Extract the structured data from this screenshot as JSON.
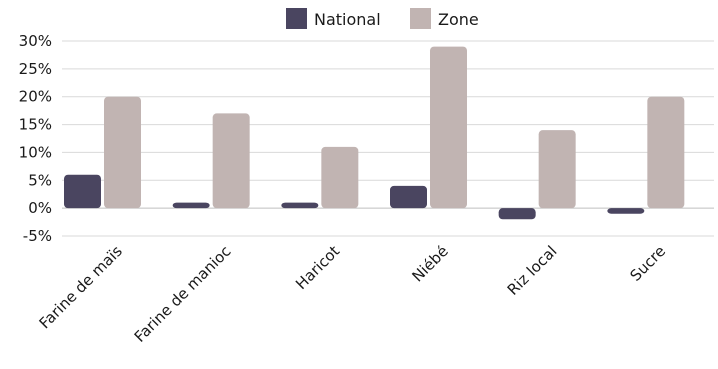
{
  "chart_data": {
    "type": "bar",
    "categories": [
      "Farine de maïs",
      "Farine de manioc",
      "Haricot",
      "Niébé",
      "Riz local",
      "Sucre"
    ],
    "series": [
      {
        "name": "National",
        "color": "#4a4560",
        "values": [
          6,
          1,
          1,
          4,
          -2,
          -1
        ]
      },
      {
        "name": "Zone",
        "color": "#c1b4b2",
        "values": [
          20,
          17,
          11,
          29,
          14,
          20
        ]
      }
    ],
    "yticks": [
      "-5%",
      "0%",
      "5%",
      "10%",
      "15%",
      "20%",
      "25%",
      "30%"
    ],
    "ylim": [
      -5,
      30
    ],
    "grid": true,
    "legend_position": "top-center"
  }
}
